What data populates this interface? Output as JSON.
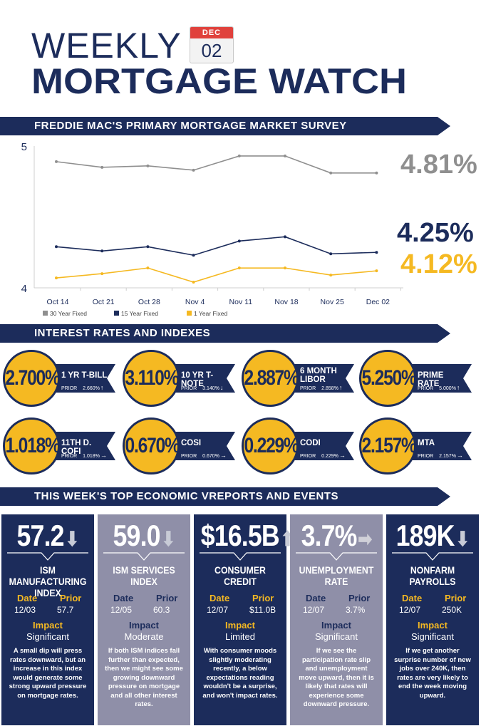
{
  "header": {
    "weekly": "WEEKLY",
    "title": "MORTGAGE WATCH",
    "month": "DEC",
    "day": "02"
  },
  "survey": {
    "banner": "FREDDIE MAC'S PRIMARY MORTGAGE MARKET SURVEY",
    "rate_30": "4.81%",
    "rate_15": "4.25%",
    "rate_1": "4.12%"
  },
  "colors": {
    "navy": "#1c2c5b",
    "gold": "#f5b922",
    "gray": "#8f8f8f",
    "card_light": "#8f8fa8",
    "calendar_red": "#e0413c"
  },
  "chart_data": {
    "type": "line",
    "categories": [
      "Oct 14",
      "Oct 21",
      "Oct 28",
      "Nov 4",
      "Nov 11",
      "Nov 18",
      "Nov 25",
      "Dec 02"
    ],
    "series": [
      {
        "name": "30 Year Fixed",
        "color": "#8f8f8f",
        "values": [
          4.89,
          4.85,
          4.86,
          4.83,
          4.93,
          4.93,
          4.81,
          4.81
        ]
      },
      {
        "name": "15 Year Fixed",
        "color": "#1c2c5b",
        "values": [
          4.29,
          4.26,
          4.29,
          4.23,
          4.33,
          4.36,
          4.24,
          4.25
        ]
      },
      {
        "name": "1 Year Fixed",
        "color": "#f5b922",
        "values": [
          4.07,
          4.1,
          4.14,
          4.04,
          4.14,
          4.14,
          4.09,
          4.12
        ]
      }
    ],
    "yticks": [
      "5",
      "4"
    ],
    "ylim": [
      4,
      5
    ],
    "legend": "bottom-left"
  },
  "indexes": {
    "banner": "INTEREST RATES AND INDEXES",
    "prior_label": "PRIOR",
    "items": [
      {
        "value": "2.700%",
        "name": "1 YR T-BILL",
        "prior": "2.660%",
        "arrow": "up"
      },
      {
        "value": "3.110%",
        "name": "10 YR T-NOTE",
        "prior": "3.140%",
        "arrow": "down"
      },
      {
        "value": "2.887%",
        "name": "6 MONTH LIBOR",
        "prior": "2.858%",
        "arrow": "up"
      },
      {
        "value": "5.250%",
        "name": "PRIME RATE",
        "prior": "5.000%",
        "arrow": "up"
      },
      {
        "value": "1.018%",
        "name": "11TH D. COFI",
        "prior": "1.018%",
        "arrow": "right"
      },
      {
        "value": "0.670%",
        "name": "COSI",
        "prior": "0.670%",
        "arrow": "right"
      },
      {
        "value": "0.229%",
        "name": "CODI",
        "prior": "0.229%",
        "arrow": "right"
      },
      {
        "value": "2.157%",
        "name": "MTA",
        "prior": "2.157%",
        "arrow": "right"
      }
    ]
  },
  "reports": {
    "banner": "THIS WEEK'S TOP ECONOMIC VREPORTS AND EVENTS",
    "date_label": "Date",
    "prior_label": "Prior",
    "impact_label": "Impact",
    "items": [
      {
        "big": "57.2",
        "arrow": "down",
        "title": "ISM MANUFACTURING INDEX",
        "date": "12/03",
        "prior": "57.7",
        "impact": "Significant",
        "desc": "A small dip will press rates downward, but an increase in this index would generate some strong upward pressure on mortgage rates.",
        "style": "dark"
      },
      {
        "big": "59.0",
        "arrow": "down",
        "title": "ISM SERVICES INDEX",
        "date": "12/05",
        "prior": "60.3",
        "impact": "Moderate",
        "desc": "If both ISM indices fall further than expected, then we might see some growing downward pressure on mortgage and all other interest rates.",
        "style": "light"
      },
      {
        "big": "$16.5B",
        "arrow": "up",
        "title": "CONSUMER CREDIT",
        "date": "12/07",
        "prior": "$11.0B",
        "impact": "Limited",
        "desc": "With consumer moods slightly moderating recently, a below expectations reading wouldn't be a surprise, and won't impact rates.",
        "style": "dark"
      },
      {
        "big": "3.7%",
        "arrow": "right",
        "title": "UNEMPLOYMENT RATE",
        "date": "12/07",
        "prior": "3.7%",
        "impact": "Significant",
        "desc": "If we see the participation rate slip and unemployment move upward, then it is likely that rates will experience some downward pressure.",
        "style": "light"
      },
      {
        "big": "189K",
        "arrow": "down",
        "title": "NONFARM PAYROLLS",
        "date": "12/07",
        "prior": "250K",
        "impact": "Significant",
        "desc": "If we get another surprise number of new jobs over 240K, then rates are very likely to end the week moving upward.",
        "style": "dark"
      }
    ]
  }
}
